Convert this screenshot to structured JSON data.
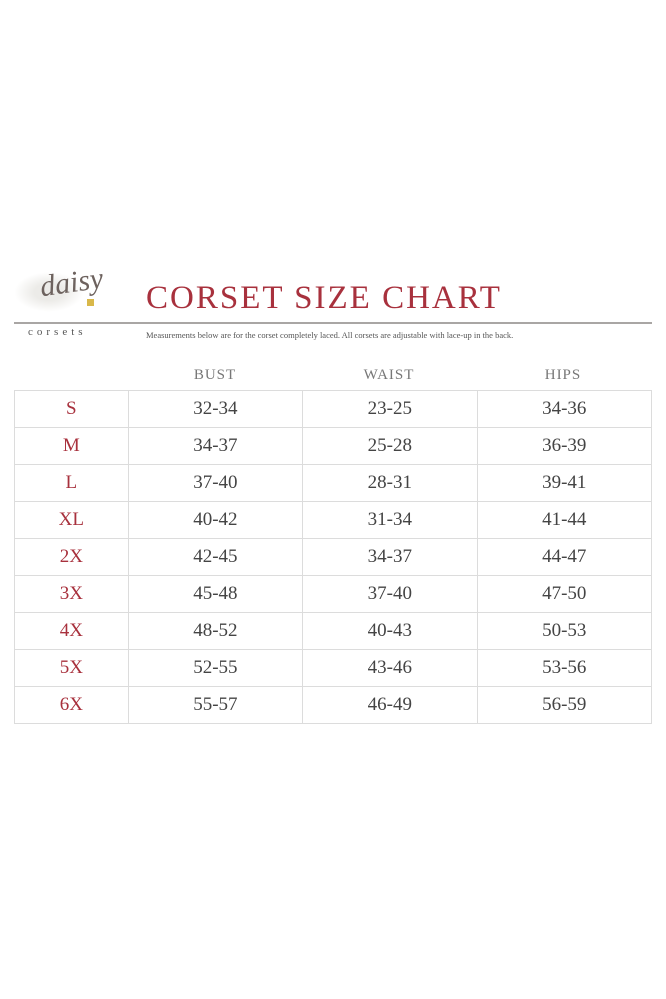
{
  "logo": {
    "script": "daisy",
    "sub": "corsets"
  },
  "title": "CORSET SIZE CHART",
  "subtitle": "Measurements below are for the corset completely laced. All corsets are adjustable with lace-up in the back.",
  "colors": {
    "accent": "#a8313d",
    "text": "#444444",
    "rule": "#a9a6a4"
  },
  "columns": [
    "BUST",
    "WAIST",
    "HIPS"
  ],
  "rows": [
    {
      "size": "S",
      "bust": "32-34",
      "waist": "23-25",
      "hips": "34-36"
    },
    {
      "size": "M",
      "bust": "34-37",
      "waist": "25-28",
      "hips": "36-39"
    },
    {
      "size": "L",
      "bust": "37-40",
      "waist": "28-31",
      "hips": "39-41"
    },
    {
      "size": "XL",
      "bust": "40-42",
      "waist": "31-34",
      "hips": "41-44"
    },
    {
      "size": "2X",
      "bust": "42-45",
      "waist": "34-37",
      "hips": "44-47"
    },
    {
      "size": "3X",
      "bust": "45-48",
      "waist": "37-40",
      "hips": "47-50"
    },
    {
      "size": "4X",
      "bust": "48-52",
      "waist": "40-43",
      "hips": "50-53"
    },
    {
      "size": "5X",
      "bust": "52-55",
      "waist": "43-46",
      "hips": "53-56"
    },
    {
      "size": "6X",
      "bust": "55-57",
      "waist": "46-49",
      "hips": "56-59"
    }
  ]
}
